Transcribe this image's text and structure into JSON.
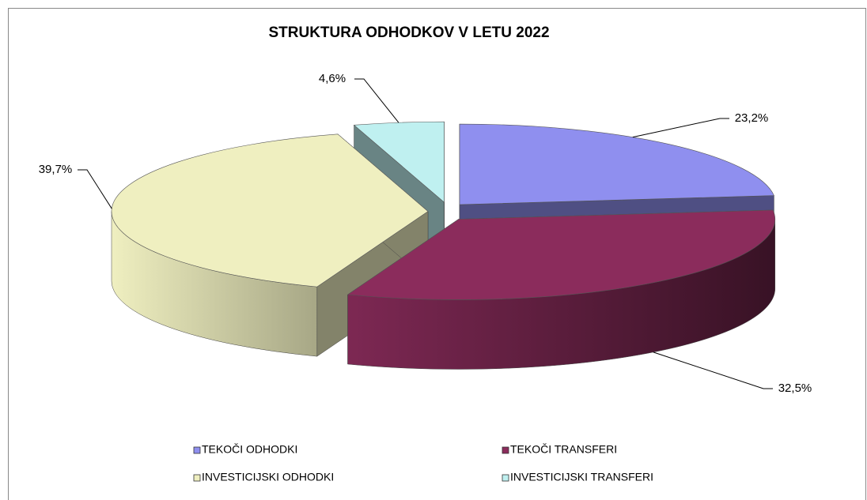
{
  "chart_data": {
    "type": "pie",
    "title": "STRUKTURA ODHODKOV V LETU 2022",
    "categories": [
      "TEKOČI ODHODKI",
      "TEKOČI TRANSFERI",
      "INVESTICIJSKI ODHODKI",
      "INVESTICIJSKI TRANSFERI"
    ],
    "values": [
      23.2,
      32.5,
      39.7,
      4.6
    ],
    "value_labels": [
      "23,2%",
      "32,5%",
      "39,7%",
      "4,6%"
    ],
    "colors": [
      "#8f8fef",
      "#8b2c5c",
      "#efefc0",
      "#bff0f0"
    ],
    "legend": "bottom"
  }
}
